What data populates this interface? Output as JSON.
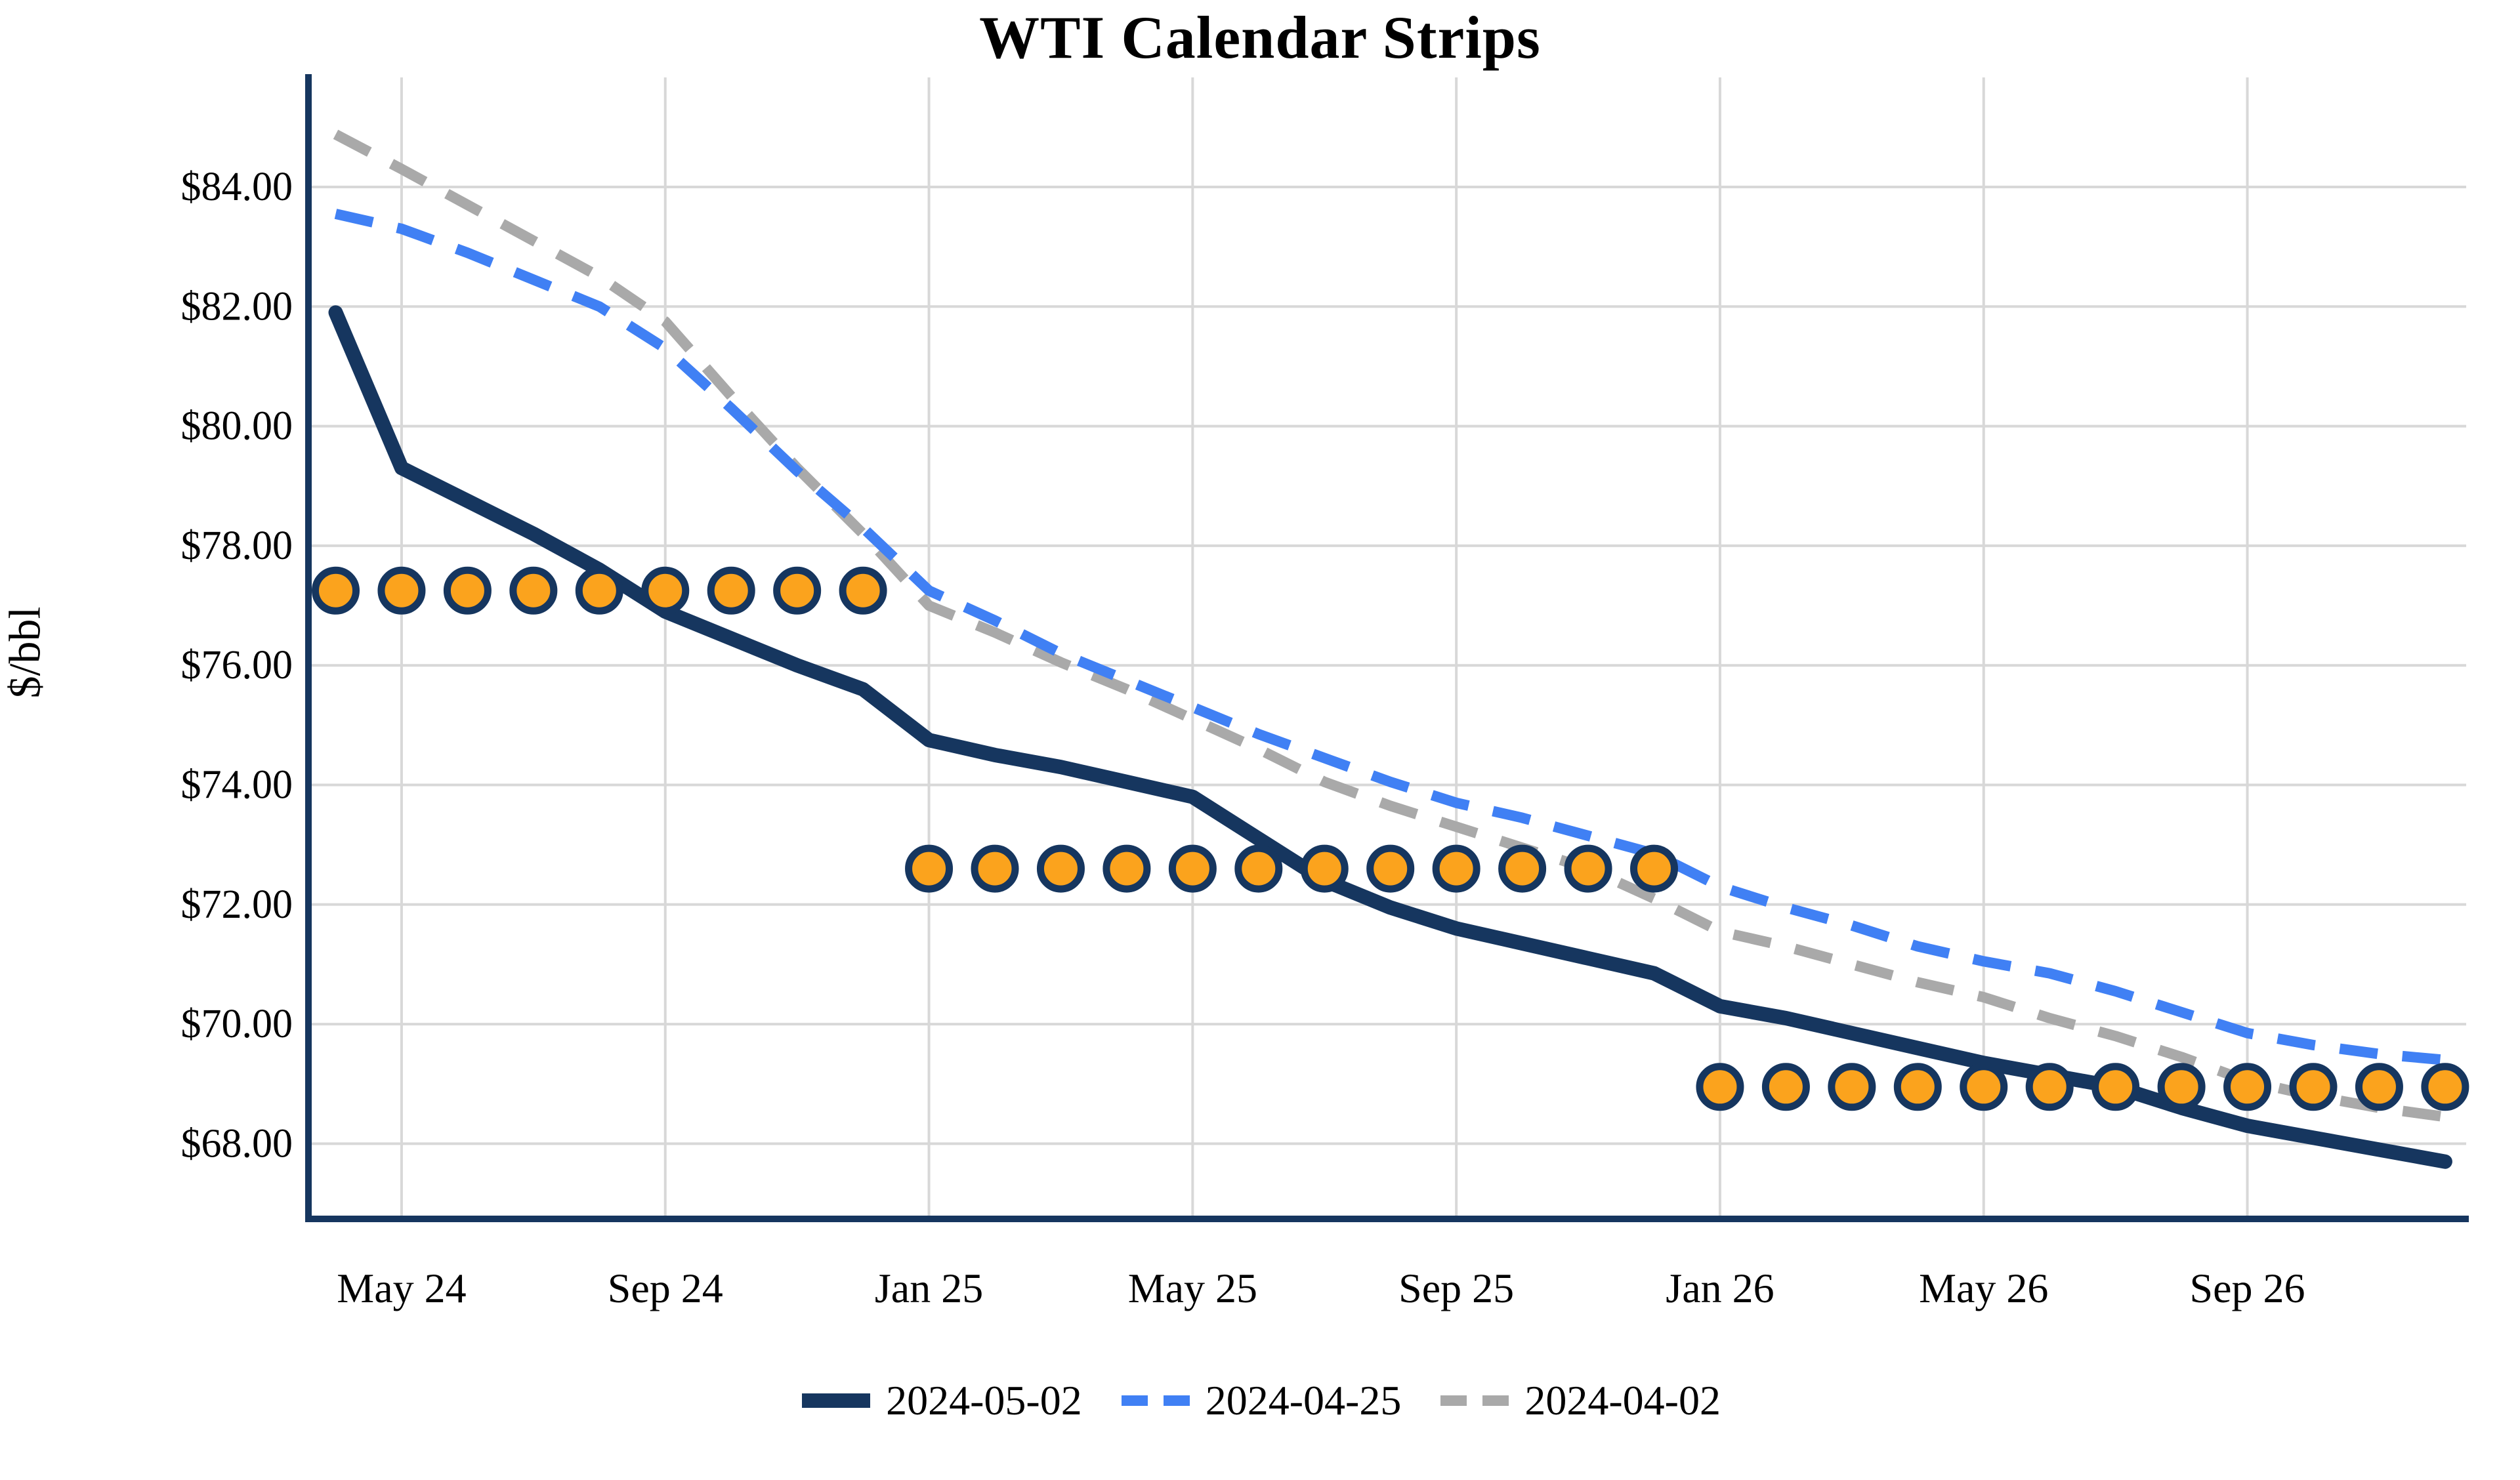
{
  "chart_data": {
    "type": "line",
    "title": "WTI Calendar Strips",
    "ylabel": "$/bbl",
    "grid": true,
    "legend_position": "bottom-center",
    "ylim": [
      66.74,
      85.83
    ],
    "x": [
      "Apr 24",
      "May 24",
      "Jun 24",
      "Jul 24",
      "Aug 24",
      "Sep 24",
      "Oct 24",
      "Nov 24",
      "Dec 24",
      "Jan 25",
      "Feb 25",
      "Mar 25",
      "Apr 25",
      "May 25",
      "Jun 25",
      "Jul 25",
      "Aug 25",
      "Sep 25",
      "Oct 25",
      "Nov 25",
      "Dec 25",
      "Jan 26",
      "Feb 26",
      "Mar 26",
      "Apr 26",
      "May 26",
      "Jun 26",
      "Jul 26",
      "Aug 26",
      "Sep 26",
      "Oct 26",
      "Nov 26",
      "Dec 26"
    ],
    "x_tick_labels": [
      "May 24",
      "Sep 24",
      "Jan 25",
      "May 25",
      "Sep 25",
      "Jan 26",
      "May 26",
      "Sep 26"
    ],
    "x_tick_month_indices": [
      1,
      5,
      9,
      13,
      17,
      21,
      25,
      29
    ],
    "y_ticks": [
      {
        "label": "$84.00",
        "value": 84
      },
      {
        "label": "$82.00",
        "value": 82
      },
      {
        "label": "$80.00",
        "value": 80
      },
      {
        "label": "$78.00",
        "value": 78
      },
      {
        "label": "$76.00",
        "value": 76
      },
      {
        "label": "$74.00",
        "value": 74
      },
      {
        "label": "$72.00",
        "value": 72
      },
      {
        "label": "$70.00",
        "value": 70
      },
      {
        "label": "$68.00",
        "value": 68
      }
    ],
    "series": [
      {
        "name": "2024-05-02",
        "style": "solid",
        "color": "#16365f",
        "values": [
          81.9,
          79.3,
          78.75,
          78.2,
          77.6,
          76.9,
          76.45,
          76.0,
          75.6,
          74.75,
          74.5,
          74.3,
          74.05,
          73.8,
          73.1,
          72.4,
          71.95,
          71.6,
          71.35,
          71.1,
          70.85,
          70.3,
          70.1,
          69.85,
          69.6,
          69.35,
          69.15,
          68.95,
          68.6,
          68.3,
          68.1,
          67.9,
          67.7
        ]
      },
      {
        "name": "2024-04-25",
        "style": "dashed",
        "color": "#4080f4",
        "values": [
          83.55,
          83.3,
          82.9,
          82.45,
          82.0,
          81.3,
          80.3,
          79.25,
          78.3,
          77.25,
          76.75,
          76.2,
          75.75,
          75.3,
          74.85,
          74.45,
          74.05,
          73.7,
          73.45,
          73.15,
          72.85,
          72.3,
          71.95,
          71.65,
          71.3,
          71.05,
          70.85,
          70.55,
          70.2,
          69.85,
          69.65,
          69.5,
          69.4
        ]
      },
      {
        "name": "2024-04-02",
        "style": "dashed",
        "color": "#a9a9a9",
        "values": [
          84.88,
          84.3,
          83.7,
          83.1,
          82.5,
          81.75,
          80.5,
          79.3,
          78.2,
          77.0,
          76.55,
          76.05,
          75.6,
          75.1,
          74.6,
          74.05,
          73.65,
          73.3,
          72.95,
          72.6,
          72.1,
          71.55,
          71.3,
          71.0,
          70.7,
          70.45,
          70.1,
          69.8,
          69.45,
          69.05,
          68.8,
          68.6,
          68.45
        ]
      }
    ],
    "marker_strips": [
      {
        "year": "2024",
        "value": 77.25,
        "start_month_index": 0,
        "end_month_index": 8
      },
      {
        "year": "2025",
        "value": 72.6,
        "start_month_index": 9,
        "end_month_index": 20
      },
      {
        "year": "2026",
        "value": 68.95,
        "start_month_index": 21,
        "end_month_index": 32
      }
    ],
    "colors": {
      "axis": "#16365f",
      "grid": "#d8d8d8",
      "marker_fill": "#fba31d",
      "marker_edge": "#16365f",
      "text": "#000000"
    }
  },
  "legend": {
    "items": [
      {
        "label": "2024-05-02"
      },
      {
        "label": "2024-04-25"
      },
      {
        "label": "2024-04-02"
      }
    ]
  }
}
